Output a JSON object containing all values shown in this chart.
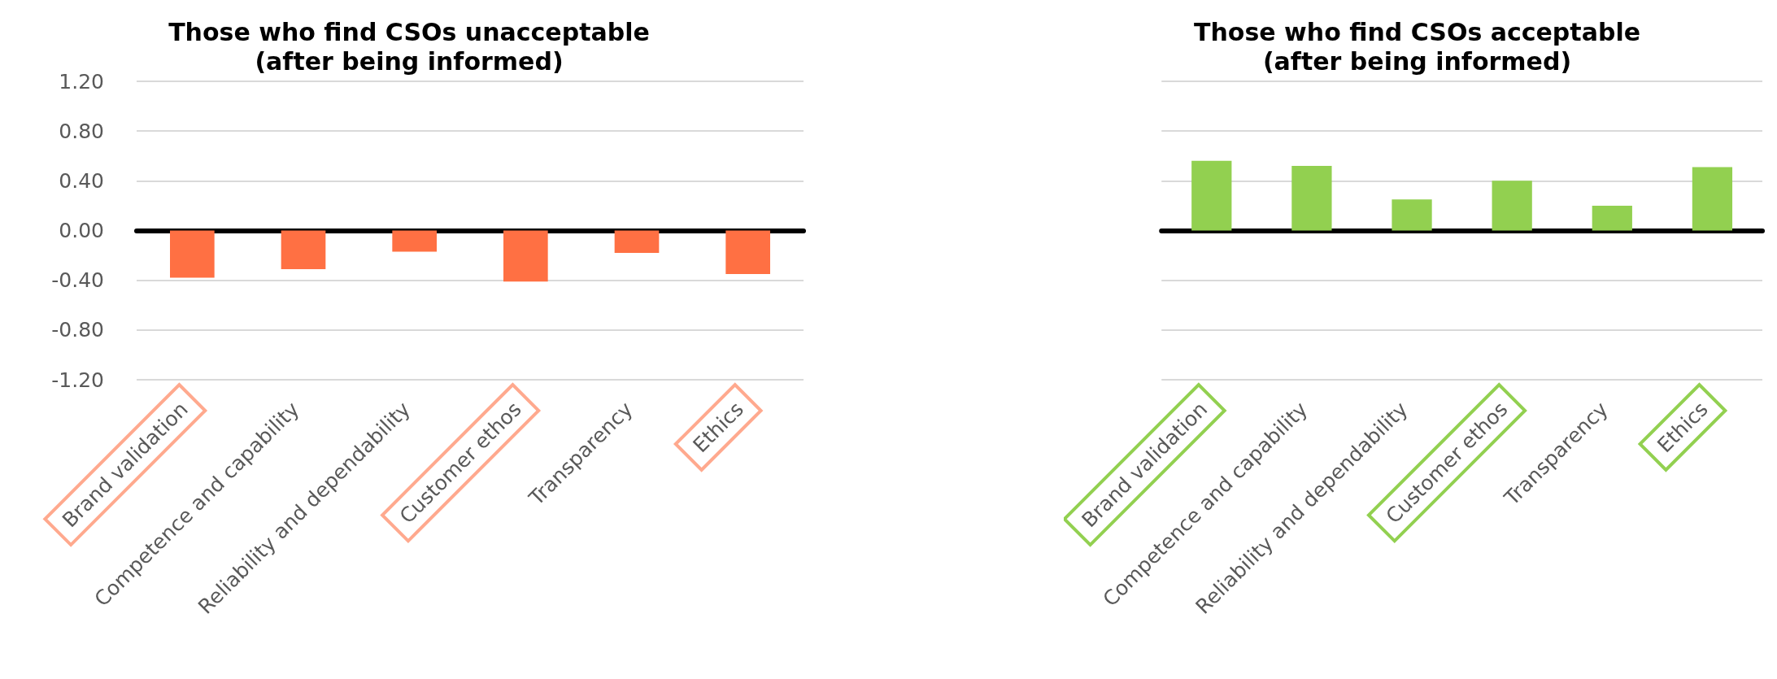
{
  "chart_data": [
    {
      "type": "bar",
      "title": "Those who find CSOs unacceptable\n(after being informed)",
      "categories": [
        "Brand validation",
        "Competence and capability",
        "Reliability and dependability",
        "Customer ethos",
        "Transparency",
        "Ethics"
      ],
      "series": [
        {
          "color": "#ff7043",
          "values": [
            -0.38,
            -0.31,
            -0.17,
            -0.41,
            -0.18,
            -0.35
          ]
        }
      ],
      "ylim": [
        -1.2,
        1.2
      ],
      "yticks": [
        {
          "value": -1.2,
          "label": "-1.20"
        },
        {
          "value": -0.8,
          "label": "-0.80"
        },
        {
          "value": -0.4,
          "label": "-0.40"
        },
        {
          "value": 0,
          "label": "0.00"
        },
        {
          "value": 0.4,
          "label": "0.40"
        },
        {
          "value": 0.8,
          "label": "0.80"
        },
        {
          "value": 1.2,
          "label": "1.20"
        }
      ],
      "grid": "y"
    },
    {
      "type": "bar",
      "title": "Those who find CSOs acceptable\n(after being informed)",
      "categories": [
        "Brand validation",
        "Competence and capability",
        "Reliability and dependability",
        "Customer ethos",
        "Transparency",
        "Ethics"
      ],
      "series": [
        {
          "color": "#92d050",
          "values": [
            0.56,
            0.52,
            0.25,
            0.4,
            0.2,
            0.51
          ]
        }
      ],
      "ylim": [
        -1.2,
        1.2
      ],
      "yticks": [
        -1.2,
        -0.8,
        -0.4,
        0,
        0.4,
        0.8,
        1.2
      ],
      "grid": "y",
      "tick_labels": "x"
    }
  ]
}
